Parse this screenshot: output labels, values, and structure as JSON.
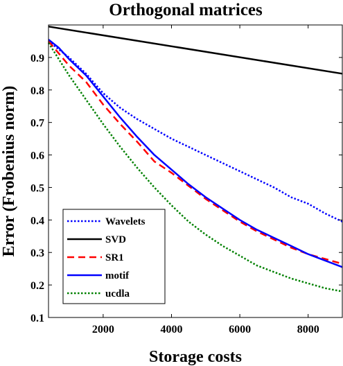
{
  "chart_data": {
    "type": "line",
    "title": "Orthogonal matrices",
    "xlabel": "Storage costs",
    "ylabel": "Error (Frobenius norm)",
    "xlim": [
      400,
      9000
    ],
    "ylim": [
      0.1,
      1.0
    ],
    "xticks": [
      2000,
      4000,
      6000,
      8000
    ],
    "yticks": [
      0.1,
      0.2,
      0.3,
      0.4,
      0.5,
      0.6,
      0.7,
      0.8,
      0.9
    ],
    "grid": false,
    "legend_position": "bottom-left",
    "series": [
      {
        "name": "Wavelets",
        "color": "#0000ff",
        "style": "dotted",
        "x": [
          400,
          1000,
          1500,
          2000,
          2500,
          3000,
          3500,
          4000,
          4500,
          5000,
          5500,
          6000,
          6500,
          7000,
          7500,
          8000,
          8500,
          9000
        ],
        "y": [
          0.95,
          0.9,
          0.85,
          0.79,
          0.745,
          0.71,
          0.68,
          0.65,
          0.625,
          0.6,
          0.575,
          0.55,
          0.525,
          0.5,
          0.47,
          0.45,
          0.42,
          0.395
        ]
      },
      {
        "name": "SVD",
        "color": "#000000",
        "style": "solid",
        "x": [
          400,
          9000
        ],
        "y": [
          0.995,
          0.85
        ]
      },
      {
        "name": "SR1",
        "color": "#ff0000",
        "style": "dashed",
        "x": [
          400,
          1000,
          1500,
          2000,
          2500,
          3000,
          3500,
          4000,
          4500,
          5000,
          5500,
          6000,
          6500,
          7000,
          7500,
          8000,
          8500,
          9000
        ],
        "y": [
          0.95,
          0.875,
          0.825,
          0.755,
          0.695,
          0.64,
          0.58,
          0.545,
          0.505,
          0.465,
          0.43,
          0.395,
          0.365,
          0.34,
          0.315,
          0.295,
          0.28,
          0.265
        ]
      },
      {
        "name": "motif",
        "color": "#0000ff",
        "style": "solid",
        "x": [
          400,
          700,
          1000,
          1500,
          2000,
          2500,
          3000,
          3500,
          4000,
          4500,
          5000,
          5500,
          6000,
          6500,
          7000,
          7500,
          8000,
          8500,
          9000
        ],
        "y": [
          0.955,
          0.93,
          0.895,
          0.845,
          0.78,
          0.715,
          0.655,
          0.6,
          0.555,
          0.51,
          0.47,
          0.435,
          0.4,
          0.37,
          0.345,
          0.32,
          0.295,
          0.275,
          0.255
        ]
      },
      {
        "name": "ucdla",
        "color": "#008000",
        "style": "dotted",
        "x": [
          400,
          1000,
          1500,
          2000,
          2500,
          3000,
          3500,
          4000,
          4500,
          5000,
          5500,
          6000,
          6500,
          7000,
          7500,
          8000,
          8500,
          9000
        ],
        "y": [
          0.945,
          0.845,
          0.77,
          0.695,
          0.625,
          0.56,
          0.5,
          0.445,
          0.395,
          0.355,
          0.32,
          0.29,
          0.26,
          0.24,
          0.22,
          0.205,
          0.19,
          0.18
        ]
      }
    ]
  }
}
